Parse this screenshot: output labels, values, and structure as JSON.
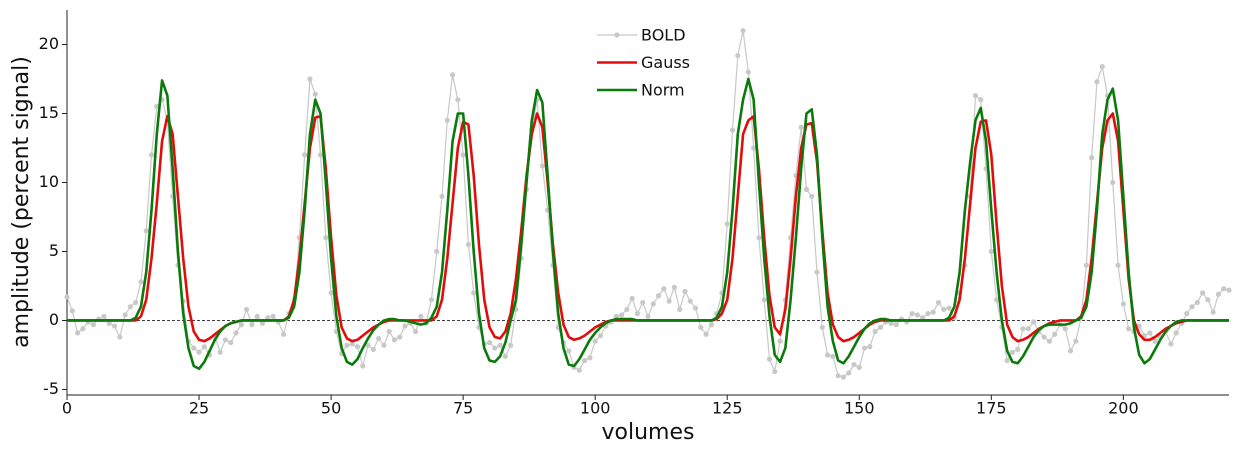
{
  "chart_data": {
    "type": "line",
    "xlabel": "volumes",
    "ylabel": "amplitude (percent signal)",
    "xlim": [
      0,
      220
    ],
    "ylim": [
      -5.4,
      22.5
    ],
    "xticks": [
      0,
      25,
      50,
      75,
      100,
      125,
      150,
      175,
      200
    ],
    "yticks": [
      -5,
      0,
      5,
      10,
      15,
      20
    ],
    "hline": 0,
    "legend": "upper center",
    "x": [
      0,
      1,
      2,
      3,
      4,
      5,
      6,
      7,
      8,
      9,
      10,
      11,
      12,
      13,
      14,
      15,
      16,
      17,
      18,
      19,
      20,
      21,
      22,
      23,
      24,
      25,
      26,
      27,
      28,
      29,
      30,
      31,
      32,
      33,
      34,
      35,
      36,
      37,
      38,
      39,
      40,
      41,
      42,
      43,
      44,
      45,
      46,
      47,
      48,
      49,
      50,
      51,
      52,
      53,
      54,
      55,
      56,
      57,
      58,
      59,
      60,
      61,
      62,
      63,
      64,
      65,
      66,
      67,
      68,
      69,
      70,
      71,
      72,
      73,
      74,
      75,
      76,
      77,
      78,
      79,
      80,
      81,
      82,
      83,
      84,
      85,
      86,
      87,
      88,
      89,
      90,
      91,
      92,
      93,
      94,
      95,
      96,
      97,
      98,
      99,
      100,
      101,
      102,
      103,
      104,
      105,
      106,
      107,
      108,
      109,
      110,
      111,
      112,
      113,
      114,
      115,
      116,
      117,
      118,
      119,
      120,
      121,
      122,
      123,
      124,
      125,
      126,
      127,
      128,
      129,
      130,
      131,
      132,
      133,
      134,
      135,
      136,
      137,
      138,
      139,
      140,
      141,
      142,
      143,
      144,
      145,
      146,
      147,
      148,
      149,
      150,
      151,
      152,
      153,
      154,
      155,
      156,
      157,
      158,
      159,
      160,
      161,
      162,
      163,
      164,
      165,
      166,
      167,
      168,
      169,
      170,
      171,
      172,
      173,
      174,
      175,
      176,
      177,
      178,
      179,
      180,
      181,
      182,
      183,
      184,
      185,
      186,
      187,
      188,
      189,
      190,
      191,
      192,
      193,
      194,
      195,
      196,
      197,
      198,
      199,
      200,
      201,
      202,
      203,
      204,
      205,
      206,
      207,
      208,
      209,
      210,
      211,
      212,
      213,
      214,
      215,
      216,
      217,
      218,
      219,
      220
    ],
    "series": [
      {
        "name": "BOLD",
        "color": "#c8c8c8",
        "marker": true,
        "width": 1.2,
        "values": [
          1.7,
          0.7,
          -0.9,
          -0.6,
          -0.1,
          -0.3,
          0.1,
          0.3,
          -0.2,
          -0.4,
          -1.2,
          0.4,
          1,
          1.3,
          2.8,
          6.5,
          12,
          15.5,
          16,
          14.5,
          9,
          4,
          1.4,
          -1.5,
          -2,
          -2.3,
          -1.9,
          -2.5,
          -1.1,
          -2.3,
          -1.4,
          -1.6,
          -0.9,
          -0.3,
          0.8,
          -0.3,
          0.3,
          -0.2,
          0.2,
          0.3,
          -0.1,
          -1,
          0.5,
          1.5,
          6,
          12,
          17.5,
          16.4,
          12,
          6,
          2,
          -0.8,
          -2.4,
          -1.8,
          -1.7,
          -1.9,
          -3.3,
          -1.8,
          -2.1,
          -1.3,
          -1.8,
          -0.8,
          -1.4,
          -1.2,
          -0.4,
          -0.2,
          -0.8,
          0.3,
          -0.2,
          1.5,
          5,
          9,
          14.5,
          17.8,
          16,
          12,
          5.5,
          2,
          -0.5,
          -1.7,
          -1.6,
          -2,
          -1.8,
          -2.6,
          -1.8,
          0.8,
          4.5,
          9.5,
          13.8,
          16,
          11.2,
          8,
          4,
          -0.5,
          -1.6,
          -2.2,
          -3.4,
          -3.6,
          -2.9,
          -2.7,
          -1.5,
          -1.1,
          -0.4,
          -0.1,
          0.3,
          0.4,
          0.8,
          1.6,
          0.5,
          1.3,
          0.3,
          1.2,
          1.8,
          2.3,
          1.4,
          2.4,
          0.8,
          2.1,
          1.4,
          0.9,
          -0.5,
          -1,
          -0.3,
          0.5,
          2,
          7,
          13.8,
          19.2,
          21,
          18,
          12.5,
          6,
          1.5,
          -2.8,
          -3.7,
          -1.5,
          1.5,
          6,
          10.5,
          14,
          9.5,
          9,
          3.5,
          -0.5,
          -2.5,
          -2.6,
          -4,
          -4.1,
          -3.8,
          -3.2,
          -3.4,
          -2,
          -1.9,
          -0.8,
          -0.5,
          -0.1,
          -0.2,
          -0.3,
          0.1,
          -0.1,
          0.5,
          0.4,
          0.2,
          0.5,
          0.6,
          1.3,
          0.8,
          0.9,
          0.2,
          2,
          4,
          9,
          16.3,
          16,
          11,
          5,
          1.5,
          -0.5,
          -2.9,
          -2.3,
          -2.1,
          -0.6,
          -0.6,
          -0.1,
          -0.8,
          -1.2,
          -1.5,
          -1,
          -0.3,
          -0.6,
          -2.2,
          -1.5,
          0.2,
          4,
          11.8,
          17.3,
          18.4,
          16.3,
          10,
          4,
          1.2,
          -0.6,
          -0.8,
          -0.4,
          -1.1,
          -0.9,
          -1.5,
          -1.2,
          -0.8,
          -1.7,
          -0.9,
          -0.2,
          0.5,
          1,
          1.3,
          2,
          1.5,
          0.6,
          1.9,
          2.3,
          2.2
        ]
      },
      {
        "name": "Gauss",
        "color": "#e30b0b",
        "marker": false,
        "width": 2.6,
        "values": [
          0,
          0,
          0,
          0,
          0,
          0,
          0,
          0,
          0,
          0,
          0,
          0,
          0,
          0,
          0.3,
          1.5,
          4.5,
          8.5,
          13,
          14.8,
          13.5,
          9,
          4.5,
          1,
          -0.8,
          -1.4,
          -1.5,
          -1.3,
          -1,
          -0.7,
          -0.4,
          -0.2,
          -0.1,
          0,
          0,
          0,
          0,
          0,
          0,
          0,
          0,
          0,
          0.3,
          1.5,
          4.5,
          8.5,
          12.5,
          14.7,
          14.8,
          11,
          6,
          1.8,
          -0.5,
          -1.3,
          -1.5,
          -1.4,
          -1.1,
          -0.8,
          -0.5,
          -0.3,
          -0.1,
          0,
          0,
          0,
          0,
          0,
          0,
          0,
          0,
          0,
          0.3,
          1.5,
          4.5,
          8.5,
          12.5,
          14.4,
          14.2,
          10.5,
          5.5,
          1.5,
          -0.5,
          -1.2,
          -1.3,
          -0.8,
          0.5,
          3,
          6.5,
          10.5,
          13.5,
          15,
          14,
          10,
          5.5,
          2,
          -0.3,
          -1.2,
          -1.4,
          -1.3,
          -1.1,
          -0.8,
          -0.5,
          -0.3,
          -0.1,
          0,
          0,
          0,
          0,
          0,
          0,
          0,
          0,
          0,
          0,
          0,
          0,
          0,
          0,
          0,
          0,
          0,
          0,
          0,
          0,
          0.1,
          0.5,
          1.5,
          4.5,
          9,
          13.5,
          14.5,
          14.8,
          11,
          6,
          1.8,
          -0.5,
          -1,
          0.8,
          4.5,
          9,
          12.5,
          14.2,
          14.3,
          11.5,
          6.5,
          2,
          -0.3,
          -1.2,
          -1.5,
          -1.4,
          -1.2,
          -0.9,
          -0.6,
          -0.3,
          -0.1,
          0,
          0,
          0,
          0,
          0,
          0,
          0,
          0,
          0,
          0,
          0,
          0,
          0,
          0,
          0.3,
          1.5,
          4.5,
          8.5,
          12.5,
          14.4,
          14.5,
          12,
          7,
          2.5,
          -0.3,
          -1.2,
          -1.5,
          -1.4,
          -1.2,
          -0.9,
          -0.6,
          -0.4,
          -0.2,
          -0.1,
          0,
          0,
          0,
          0,
          0.3,
          1.5,
          4.5,
          8.5,
          12.5,
          14.5,
          15,
          13,
          8,
          3,
          0,
          -1,
          -1.4,
          -1.4,
          -1.2,
          -0.9,
          -0.6,
          -0.4,
          -0.2,
          -0.1,
          0,
          0,
          0,
          0,
          0,
          0,
          0,
          0,
          0
        ]
      },
      {
        "name": "Norm",
        "color": "#0a7a0a",
        "marker": false,
        "width": 2.6,
        "values": [
          0,
          0,
          0,
          0,
          0,
          0,
          0,
          0,
          0,
          0,
          0,
          0,
          0,
          0.2,
          1,
          3.5,
          8,
          13.5,
          17.4,
          16.3,
          11,
          5,
          0.5,
          -2,
          -3.3,
          -3.5,
          -3,
          -2.2,
          -1.4,
          -0.8,
          -0.4,
          -0.2,
          -0.1,
          0,
          0,
          0,
          0,
          0,
          0,
          0,
          0,
          0,
          0.2,
          1,
          3.5,
          8,
          13.5,
          16,
          15,
          10,
          4.5,
          0.3,
          -2,
          -3,
          -3.2,
          -2.8,
          -2,
          -1.3,
          -0.7,
          -0.3,
          0,
          0.1,
          0.1,
          0,
          0,
          -0.1,
          -0.2,
          -0.3,
          -0.2,
          0.2,
          1,
          3.5,
          8,
          13,
          15,
          15,
          10.5,
          5,
          0.5,
          -2,
          -2.9,
          -3,
          -2.6,
          -1.6,
          0,
          1.5,
          5.5,
          10,
          14.5,
          16.7,
          15.8,
          10.5,
          5,
          0.5,
          -2,
          -3.2,
          -3.3,
          -2.8,
          -2.1,
          -1.4,
          -0.9,
          -0.5,
          -0.2,
          0,
          0.1,
          0.1,
          0.1,
          0.1,
          0,
          0,
          0,
          0,
          0,
          0,
          0,
          0,
          0,
          0,
          0,
          0,
          0,
          0,
          0,
          0.2,
          1,
          3.5,
          8,
          13.5,
          16,
          17.5,
          16,
          10,
          4.5,
          0.3,
          -2.5,
          -3,
          -2,
          1.5,
          6,
          11,
          15,
          15.3,
          12,
          6,
          1,
          -1.5,
          -2.9,
          -3.1,
          -2.6,
          -1.9,
          -1.2,
          -0.6,
          -0.2,
          0,
          0.1,
          0.1,
          0,
          0,
          0,
          0,
          0,
          0,
          0,
          0,
          0,
          0,
          0,
          0.2,
          1,
          3.5,
          8,
          11.5,
          14.5,
          15.4,
          13,
          8,
          3.5,
          0,
          -2.2,
          -3,
          -3.1,
          -2.6,
          -1.9,
          -1.2,
          -0.7,
          -0.4,
          -0.3,
          -0.3,
          -0.3,
          -0.3,
          -0.2,
          0,
          0.2,
          1,
          3.5,
          8,
          13.5,
          16,
          16.8,
          14.5,
          9,
          3.5,
          -0.5,
          -2.5,
          -3.1,
          -2.8,
          -2.1,
          -1.4,
          -0.8,
          -0.4,
          -0.1,
          0,
          0,
          0,
          0,
          0,
          0,
          0,
          0,
          0,
          0
        ]
      }
    ]
  }
}
